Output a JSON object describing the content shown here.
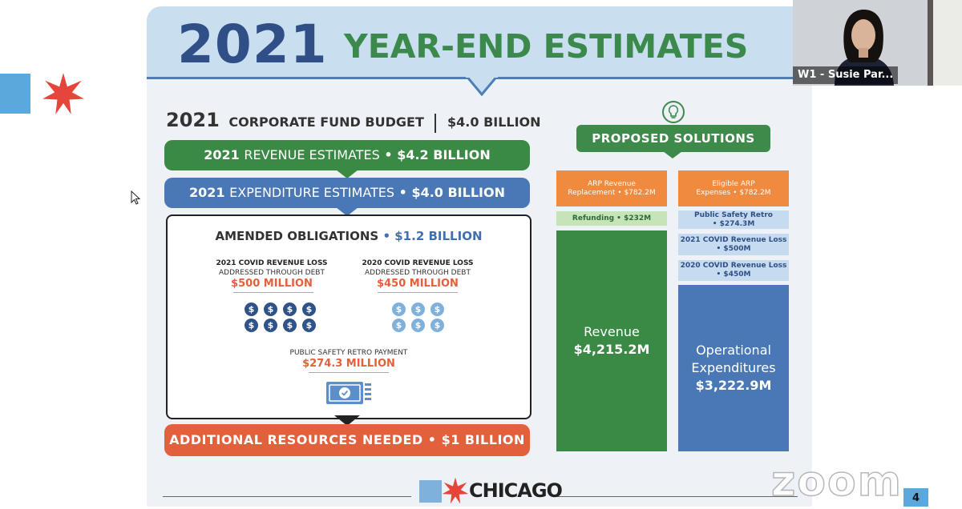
{
  "slide": {
    "title_year": "2021",
    "title_rest": "YEAR-END ESTIMATES",
    "budget": {
      "year": "2021",
      "label": "CORPORATE FUND BUDGET",
      "amount": "$4.0 BILLION"
    },
    "revenue_band": {
      "year": "2021",
      "label": "REVENUE ESTIMATES",
      "amount": "• $4.2 BILLION"
    },
    "expenditure_band": {
      "year": "2021",
      "label": "EXPENDITURE ESTIMATES",
      "amount": "• $4.0 BILLION"
    },
    "obligations": {
      "title": "AMENDED OBLIGATIONS",
      "amount": "• $1.2 BILLION",
      "col1": {
        "head": "2021 COVID REVENUE LOSS",
        "sub": "ADDRESSED THROUGH DEBT",
        "amount": "$500 MILLION"
      },
      "col2": {
        "head": "2020 COVID REVENUE LOSS",
        "sub": "ADDRESSED THROUGH DEBT",
        "amount": "$450 MILLION"
      },
      "retro": {
        "label": "PUBLIC SAFETY RETRO PAYMENT",
        "amount": "$274.3 MILLION"
      },
      "coin_symbol": "$"
    },
    "additional": "ADDITIONAL RESOURCES NEEDED • $1 BILLION",
    "solutions": {
      "label": "PROPOSED SOLUTIONS",
      "left": {
        "arp_line1": "ARP Revenue",
        "arp_line2": "Replacement • $782.2M",
        "refunding": "Refunding • $232M",
        "revenue_label": "Revenue",
        "revenue_amount": "$4,215.2M"
      },
      "right": {
        "arp_line1": "Eligible ARP",
        "arp_line2": "Expenses • $782.2M",
        "retro_line1": "Public Safety Retro",
        "retro_line2": "• $274.3M",
        "covid21_line1": "2021 COVID Revenue Loss",
        "covid21_line2": "• $500M",
        "covid20_line1": "2020 COVID Revenue Loss",
        "covid20_line2": "• $450M",
        "op_line1": "Operational",
        "op_line2": "Expenditures",
        "op_amount": "$3,222.9M"
      }
    },
    "footer_logo": "CHICAGO",
    "page_number": "4"
  },
  "zoom": {
    "watermark": "zoom",
    "participant_label": "W1 - Susie Par..."
  },
  "colors": {
    "green": "#3a8a45",
    "blue": "#4a78b6",
    "orange": "#e2603b",
    "navy": "#2f4f86"
  },
  "icons": [
    "chicago-star-icon",
    "lightbulb-icon",
    "dollar-coin-icon",
    "check-payment-icon",
    "mouse-cursor-icon"
  ]
}
